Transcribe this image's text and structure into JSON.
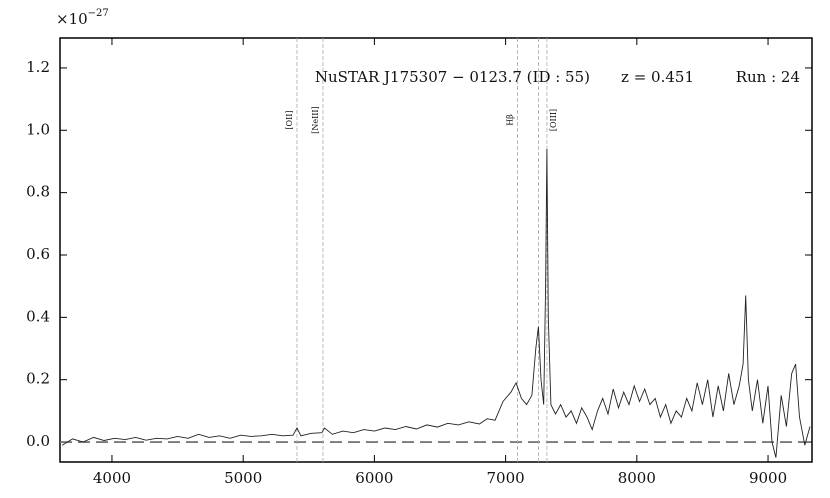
{
  "chart_data": {
    "type": "line",
    "offset_label": "×10",
    "offset_exponent": "−27",
    "annotations": [
      "NuSTAR J175307 − 0123.7 (ID : 55)",
      "z = 0.451",
      "Run : 24"
    ],
    "emission_lines": [
      {
        "label": "[OII]",
        "x": 5410
      },
      {
        "label": "[NeIII]",
        "x": 5608
      },
      {
        "label": "Hβ",
        "x": 7090
      },
      {
        "label": "[OIII]",
        "x": 7315
      }
    ],
    "unlabeled_lines": [
      7250
    ],
    "zero_line": true,
    "xlim": [
      3604,
      9335
    ],
    "xticks": [
      4000,
      5000,
      6000,
      7000,
      8000,
      9000
    ],
    "ylim": [
      -0.064,
      1.296
    ],
    "yticks": [
      {
        "value": 0,
        "label": "0.0"
      },
      0.2,
      0.4,
      0.6,
      0.8,
      {
        "value": 1,
        "label": "1.0"
      },
      1.2
    ],
    "series": [
      {
        "color": "#222222",
        "x": [
          3620,
          3700,
          3780,
          3860,
          3940,
          4020,
          4100,
          4180,
          4260,
          4340,
          4420,
          4500,
          4580,
          4660,
          4740,
          4820,
          4900,
          4980,
          5060,
          5140,
          5220,
          5300,
          5380,
          5410,
          5440,
          5520,
          5600,
          5620,
          5680,
          5760,
          5840,
          5920,
          6000,
          6080,
          6160,
          6240,
          6320,
          6400,
          6480,
          6560,
          6640,
          6720,
          6800,
          6860,
          6920,
          6980,
          7040,
          7080,
          7120,
          7160,
          7200,
          7230,
          7250,
          7270,
          7290,
          7305,
          7315,
          7325,
          7345,
          7380,
          7420,
          7460,
          7500,
          7540,
          7580,
          7620,
          7660,
          7700,
          7740,
          7780,
          7820,
          7860,
          7900,
          7940,
          7980,
          8020,
          8060,
          8100,
          8140,
          8180,
          8220,
          8260,
          8300,
          8340,
          8380,
          8420,
          8460,
          8500,
          8540,
          8580,
          8620,
          8660,
          8700,
          8740,
          8780,
          8810,
          8830,
          8850,
          8880,
          8920,
          8960,
          9000,
          9030,
          9060,
          9100,
          9140,
          9180,
          9210,
          9240,
          9280,
          9320
        ],
        "values": [
          -0.01,
          0.01,
          0.0,
          0.015,
          0.005,
          0.012,
          0.008,
          0.015,
          0.006,
          0.012,
          0.01,
          0.018,
          0.012,
          0.025,
          0.015,
          0.02,
          0.012,
          0.022,
          0.018,
          0.02,
          0.025,
          0.02,
          0.022,
          0.045,
          0.02,
          0.028,
          0.03,
          0.045,
          0.025,
          0.035,
          0.03,
          0.04,
          0.035,
          0.045,
          0.04,
          0.05,
          0.042,
          0.055,
          0.048,
          0.06,
          0.055,
          0.065,
          0.058,
          0.075,
          0.07,
          0.13,
          0.16,
          0.19,
          0.14,
          0.12,
          0.15,
          0.3,
          0.37,
          0.2,
          0.12,
          0.5,
          0.94,
          0.4,
          0.12,
          0.09,
          0.12,
          0.08,
          0.1,
          0.06,
          0.11,
          0.08,
          0.04,
          0.1,
          0.14,
          0.09,
          0.17,
          0.11,
          0.16,
          0.12,
          0.18,
          0.13,
          0.17,
          0.12,
          0.14,
          0.08,
          0.12,
          0.06,
          0.1,
          0.08,
          0.14,
          0.1,
          0.19,
          0.12,
          0.2,
          0.08,
          0.18,
          0.1,
          0.22,
          0.12,
          0.18,
          0.25,
          0.47,
          0.2,
          0.1,
          0.2,
          0.06,
          0.18,
          0.0,
          -0.05,
          0.15,
          0.05,
          0.22,
          0.25,
          0.08,
          -0.01,
          0.05
        ]
      }
    ]
  }
}
